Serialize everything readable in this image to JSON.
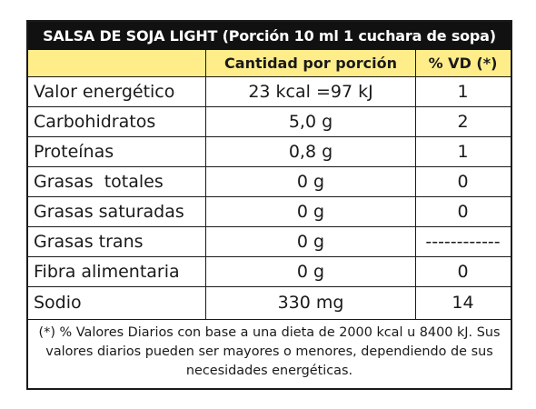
{
  "title": "SALSA DE SOJA LIGHT (Porción 10 ml 1 cuchara de sopa)",
  "columns": {
    "nutrient": "",
    "amount": "Cantidad por porción",
    "daily_value": "% VD (*)"
  },
  "rows": [
    {
      "nutrient": "Valor energético",
      "amount": "23 kcal =97 kJ",
      "daily_value": "1"
    },
    {
      "nutrient": "Carbohidratos",
      "amount": "5,0 g",
      "daily_value": "2"
    },
    {
      "nutrient": "Proteínas",
      "amount": "0,8 g",
      "daily_value": "1"
    },
    {
      "nutrient": "Grasas  totales",
      "amount": "0 g",
      "daily_value": "0"
    },
    {
      "nutrient": "Grasas saturadas",
      "amount": "0 g",
      "daily_value": "0"
    },
    {
      "nutrient": "Grasas trans",
      "amount": "0 g",
      "daily_value": "------------"
    },
    {
      "nutrient": "Fibra alimentaria",
      "amount": "0 g",
      "daily_value": "0"
    },
    {
      "nutrient": "Sodio",
      "amount": "330 mg",
      "daily_value": "14"
    }
  ],
  "footnote": "(*) % Valores Diarios con base a una dieta de 2000 kcal u 8400 kJ. Sus valores diarios pueden ser mayores o menores, dependiendo de sus necesidades energéticas.",
  "colors": {
    "title_background": "#111111",
    "header_background": "#ffed8a",
    "border": "#1a1a1a"
  }
}
